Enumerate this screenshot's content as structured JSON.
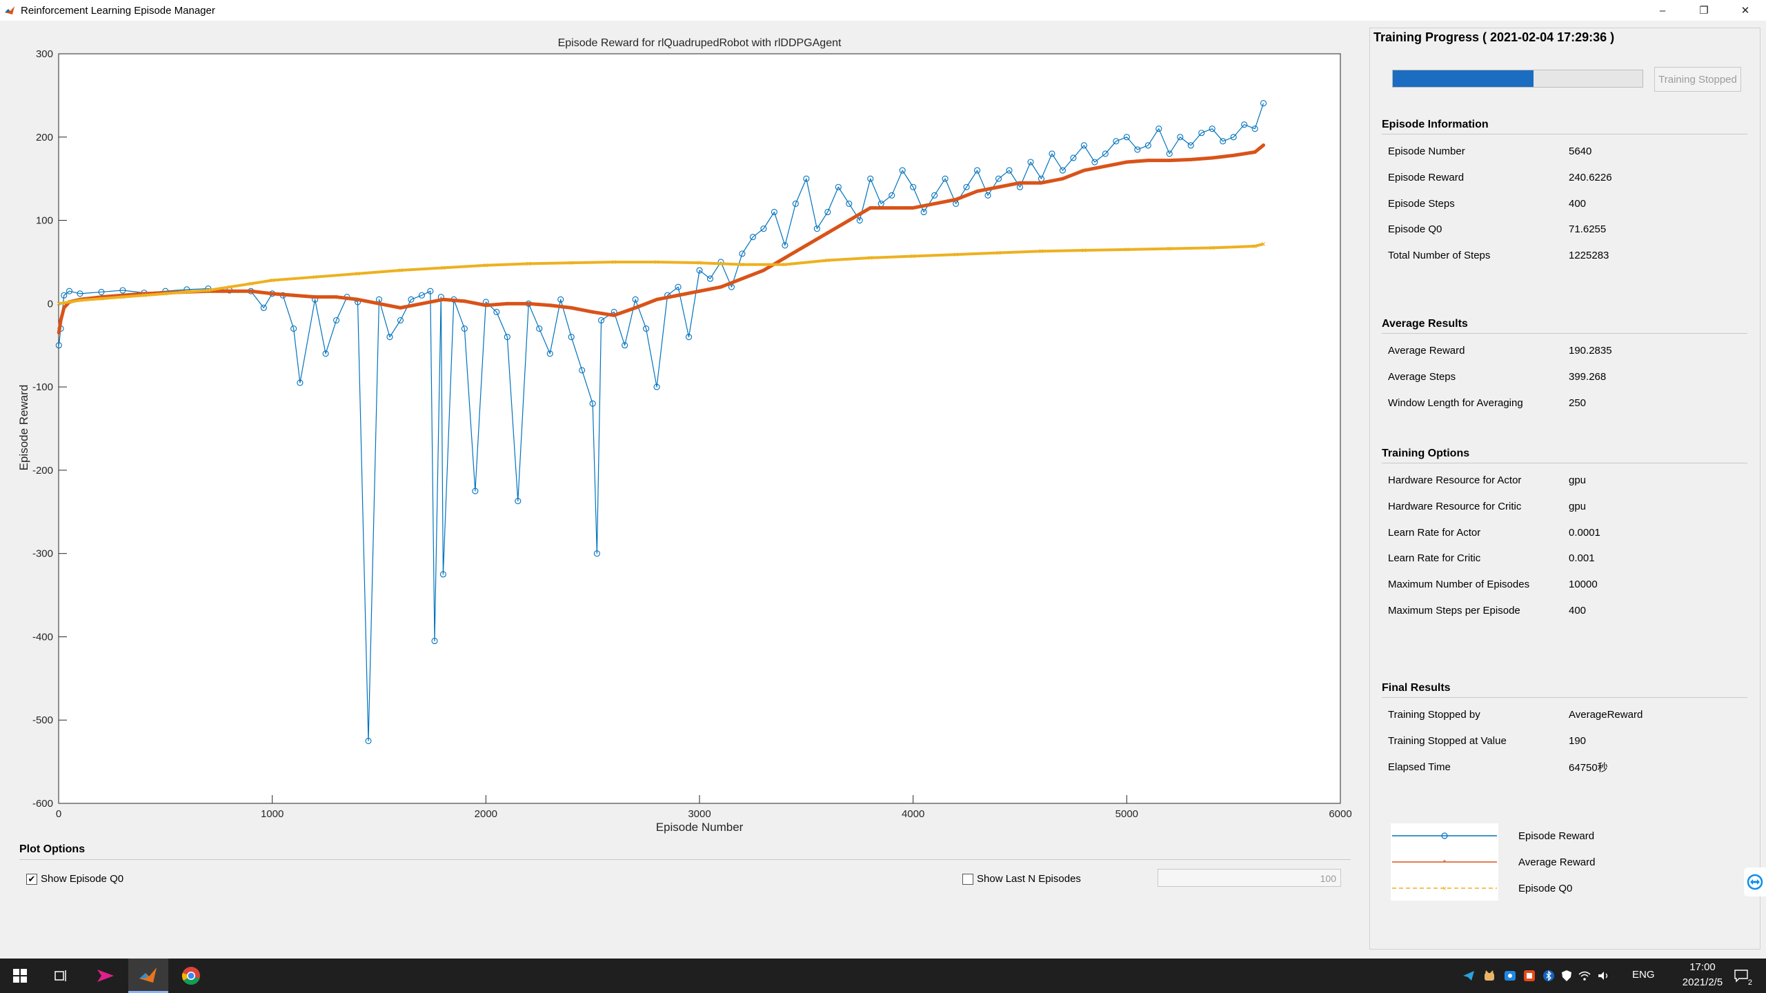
{
  "window": {
    "title": "Reinforcement Learning Episode Manager",
    "controls": {
      "minimize": "–",
      "restore": "❐",
      "close": "✕"
    }
  },
  "chart_data": {
    "type": "line",
    "title": "Episode Reward for rlQuadrupedRobot with rlDDPGAgent",
    "xlabel": "Episode Number",
    "ylabel": "Episode Reward",
    "xlim": [
      0,
      6000
    ],
    "ylim": [
      -600,
      300
    ],
    "xticks": [
      0,
      1000,
      2000,
      3000,
      4000,
      5000,
      6000
    ],
    "yticks": [
      300,
      200,
      100,
      0,
      -100,
      -200,
      -300,
      -400,
      -500,
      -600
    ],
    "grid": false,
    "legend_position": "right panel",
    "series": [
      {
        "name": "Episode Reward",
        "color": "#0072bd",
        "marker": "circle",
        "x": [
          1,
          10,
          25,
          50,
          100,
          200,
          300,
          400,
          500,
          600,
          700,
          800,
          900,
          960,
          1000,
          1050,
          1100,
          1130,
          1200,
          1250,
          1300,
          1350,
          1400,
          1450,
          1500,
          1550,
          1600,
          1650,
          1700,
          1740,
          1760,
          1790,
          1800,
          1850,
          1900,
          1950,
          2000,
          2050,
          2100,
          2150,
          2200,
          2250,
          2300,
          2350,
          2400,
          2450,
          2500,
          2520,
          2540,
          2600,
          2650,
          2700,
          2750,
          2800,
          2850,
          2900,
          2950,
          3000,
          3050,
          3100,
          3150,
          3200,
          3250,
          3300,
          3350,
          3400,
          3450,
          3500,
          3550,
          3600,
          3650,
          3700,
          3750,
          3800,
          3850,
          3900,
          3950,
          4000,
          4050,
          4100,
          4150,
          4200,
          4250,
          4300,
          4350,
          4400,
          4450,
          4500,
          4550,
          4600,
          4650,
          4700,
          4750,
          4800,
          4850,
          4900,
          4950,
          5000,
          5050,
          5100,
          5150,
          5200,
          5250,
          5300,
          5350,
          5400,
          5450,
          5500,
          5550,
          5600,
          5640
        ],
        "y": [
          -50,
          -30,
          10,
          15,
          12,
          14,
          16,
          13,
          15,
          17,
          18,
          16,
          15,
          -5,
          12,
          10,
          -30,
          -95,
          5,
          -60,
          -20,
          8,
          2,
          -525,
          5,
          -40,
          -20,
          5,
          10,
          15,
          -405,
          8,
          -325,
          5,
          -30,
          -225,
          2,
          -10,
          -40,
          -237,
          0,
          -30,
          -60,
          5,
          -40,
          -80,
          -120,
          -300,
          -20,
          -10,
          -50,
          5,
          -30,
          -100,
          10,
          20,
          -40,
          40,
          30,
          50,
          20,
          60,
          80,
          90,
          110,
          70,
          120,
          150,
          90,
          110,
          140,
          120,
          100,
          150,
          120,
          130,
          160,
          140,
          110,
          130,
          150,
          120,
          140,
          160,
          130,
          150,
          160,
          140,
          170,
          150,
          180,
          160,
          175,
          190,
          170,
          180,
          195,
          200,
          185,
          190,
          210,
          180,
          200,
          190,
          205,
          210,
          195,
          200,
          215,
          210,
          240.6226
        ]
      },
      {
        "name": "Average Reward",
        "color": "#d95319",
        "marker": "star",
        "x": [
          1,
          10,
          25,
          50,
          100,
          200,
          300,
          400,
          500,
          600,
          700,
          800,
          900,
          1000,
          1100,
          1200,
          1300,
          1400,
          1500,
          1600,
          1700,
          1800,
          1900,
          2000,
          2100,
          2200,
          2300,
          2400,
          2500,
          2600,
          2700,
          2800,
          2900,
          3000,
          3100,
          3200,
          3300,
          3400,
          3500,
          3600,
          3700,
          3800,
          3900,
          4000,
          4100,
          4200,
          4300,
          4400,
          4500,
          4600,
          4700,
          4800,
          4900,
          5000,
          5100,
          5200,
          5300,
          5400,
          5500,
          5600,
          5640
        ],
        "y": [
          -35,
          -20,
          -5,
          2,
          5,
          8,
          10,
          12,
          13,
          14,
          15,
          15,
          15,
          12,
          10,
          8,
          8,
          5,
          0,
          -5,
          0,
          5,
          3,
          -2,
          0,
          0,
          -2,
          -5,
          -10,
          -14,
          -5,
          5,
          10,
          15,
          20,
          30,
          40,
          55,
          70,
          85,
          100,
          115,
          115,
          115,
          120,
          125,
          135,
          140,
          145,
          145,
          150,
          160,
          165,
          170,
          172,
          172,
          173,
          175,
          178,
          182,
          190.2835
        ]
      },
      {
        "name": "Episode Q0",
        "color": "#edb120",
        "marker": "x",
        "dashed": true,
        "x": [
          1,
          50,
          100,
          200,
          300,
          400,
          500,
          600,
          700,
          800,
          900,
          1000,
          1200,
          1400,
          1600,
          1800,
          2000,
          2200,
          2400,
          2600,
          2800,
          3000,
          3200,
          3400,
          3600,
          3800,
          4000,
          4200,
          4400,
          4600,
          4800,
          5000,
          5200,
          5400,
          5600,
          5640
        ],
        "y": [
          0,
          2,
          4,
          6,
          8,
          10,
          12,
          14,
          16,
          20,
          24,
          28,
          32,
          36,
          40,
          43,
          46,
          48,
          49,
          50,
          50,
          49,
          47,
          47,
          52,
          55,
          57,
          59,
          61,
          63,
          64,
          65,
          66,
          67,
          69,
          71.6255
        ]
      }
    ]
  },
  "plot_options": {
    "title": "Plot Options",
    "show_q0_label": "Show Episode Q0",
    "show_q0_checked": "✔",
    "show_lastn_label": "Show Last N Episodes",
    "lastn_value": "100"
  },
  "training_progress": {
    "header": "Training Progress ( 2021-02-04 17:29:36 )",
    "progress_fraction": 0.564,
    "stop_button": "Training Stopped",
    "progress_color": "#1a6dc0"
  },
  "episode_information": {
    "title": "Episode Information",
    "rows": [
      {
        "k": "Episode Number",
        "v": "5640"
      },
      {
        "k": "Episode Reward",
        "v": "240.6226"
      },
      {
        "k": "Episode Steps",
        "v": "400"
      },
      {
        "k": "Episode Q0",
        "v": "71.6255"
      },
      {
        "k": "Total Number of Steps",
        "v": "1225283"
      }
    ]
  },
  "average_results": {
    "title": "Average Results",
    "rows": [
      {
        "k": "Average Reward",
        "v": "190.2835"
      },
      {
        "k": "Average Steps",
        "v": "399.268"
      },
      {
        "k": "Window Length for Averaging",
        "v": "250"
      }
    ]
  },
  "training_options": {
    "title": "Training Options",
    "rows": [
      {
        "k": "Hardware Resource for Actor",
        "v": "gpu"
      },
      {
        "k": "Hardware Resource for Critic",
        "v": "gpu"
      },
      {
        "k": "Learn Rate for Actor",
        "v": "0.0001"
      },
      {
        "k": "Learn Rate for Critic",
        "v": "0.001"
      },
      {
        "k": "Maximum Number of Episodes",
        "v": "10000"
      },
      {
        "k": "Maximum Steps per Episode",
        "v": "400"
      }
    ]
  },
  "final_results": {
    "title": "Final Results",
    "rows": [
      {
        "k": "Training Stopped by",
        "v": "AverageReward"
      },
      {
        "k": "Training Stopped at Value",
        "v": "190"
      },
      {
        "k": "Elapsed Time",
        "v": "64750秒"
      }
    ]
  },
  "legend": {
    "items": [
      "Episode Reward",
      "Average Reward",
      "Episode Q0"
    ]
  },
  "taskbar": {
    "icons": [
      "windows-start-icon",
      "task-view-icon",
      "paper-plane-app-icon",
      "matlab-icon",
      "chrome-icon"
    ],
    "language": "ENG",
    "time": "17:00",
    "date": "2021/2/5",
    "notification_count": "2"
  }
}
